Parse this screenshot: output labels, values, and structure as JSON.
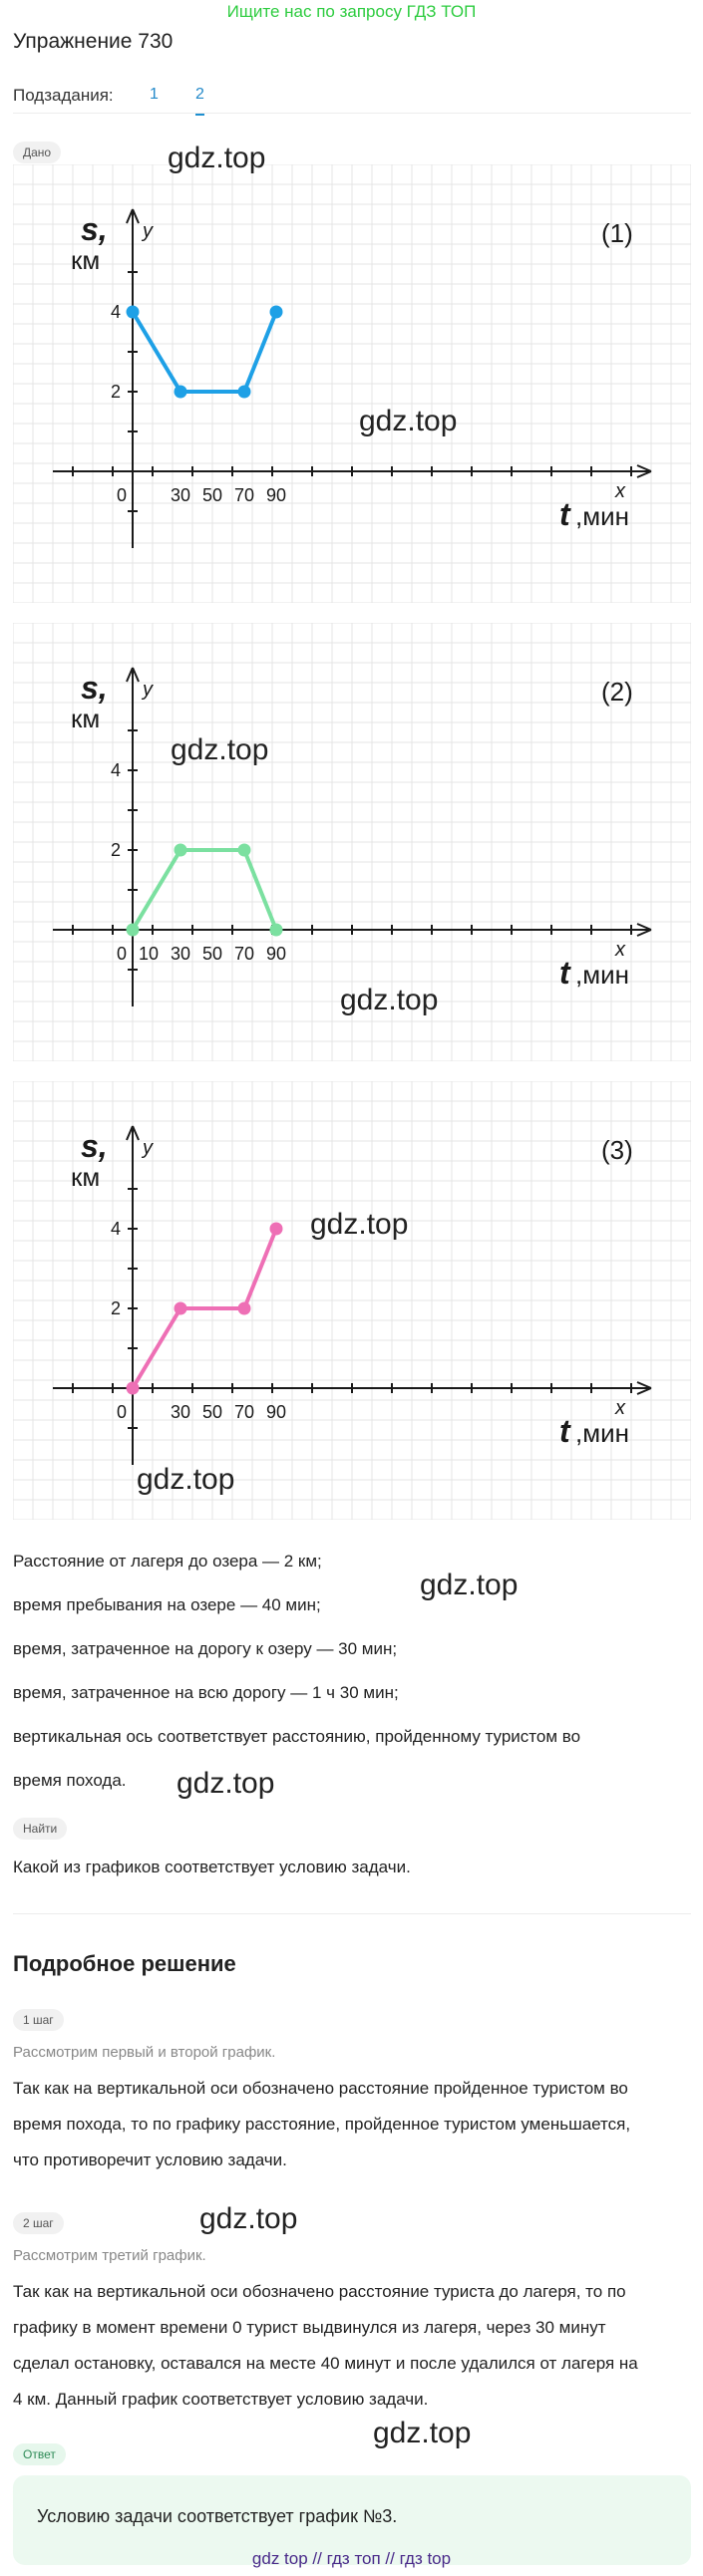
{
  "top_link": "Ищите нас по запросу ГДЗ ТОП",
  "title": "Упражнение 730",
  "subtasks": {
    "label": "Подзадания:",
    "items": [
      "1",
      "2"
    ],
    "active": 1
  },
  "badges": {
    "given": "Дано",
    "find": "Найти",
    "step1": "1 шаг",
    "step2": "2 шаг",
    "answer": "Ответ"
  },
  "watermark": "gdz.top",
  "graph_labels": {
    "s": "s,",
    "km": "км",
    "y": "y",
    "x": "x",
    "t": "t",
    "min": ",мин",
    "x_ticks": [
      "0",
      "10",
      "30",
      "50",
      "70",
      "90"
    ],
    "y_ticks": [
      "4",
      "2"
    ]
  },
  "chart_data": [
    {
      "type": "line",
      "title": "(1)",
      "x": [
        0,
        30,
        70,
        90
      ],
      "y": [
        4,
        2,
        2,
        4
      ],
      "color": "#1ea0e6",
      "xlim": [
        0,
        90
      ],
      "ylim": [
        0,
        4
      ],
      "x_ticks": [
        0,
        30,
        50,
        70,
        90
      ],
      "y_ticks": [
        2,
        4
      ]
    },
    {
      "type": "line",
      "title": "(2)",
      "x": [
        0,
        30,
        70,
        90
      ],
      "y": [
        0,
        2,
        2,
        0
      ],
      "color": "#7be0a0",
      "xlim": [
        0,
        90
      ],
      "ylim": [
        0,
        4
      ],
      "x_ticks": [
        0,
        10,
        30,
        50,
        70,
        90
      ],
      "y_ticks": [
        2,
        4
      ]
    },
    {
      "type": "line",
      "title": "(3)",
      "x": [
        0,
        30,
        70,
        90
      ],
      "y": [
        0,
        2,
        2,
        4
      ],
      "color": "#ee6fb5",
      "xlim": [
        0,
        90
      ],
      "ylim": [
        0,
        4
      ],
      "x_ticks": [
        0,
        30,
        50,
        70,
        90
      ],
      "y_ticks": [
        2,
        4
      ]
    }
  ],
  "conditions": [
    "Расстояние от лагеря до озера — 2 км;",
    "время пребывания на озере — 40 мин;",
    "время, затраченное на дорогу к озеру — 30 мин;",
    "время, затраченное на всю дорогу — 1 ч 30 мин;",
    "вертикальная ось соответствует расстоянию, пройденному туристом во",
    "время похода."
  ],
  "question": "Какой из графиков соответствует условию задачи.",
  "solution_title": "Подробное решение",
  "step1": {
    "subtitle": "Рассмотрим первый и второй график.",
    "lines": [
      "Так как на вертикальной оси обозначено расстояние пройденное туристом во",
      "время похода, то по графику расстояние, пройденное туристом уменьшается,",
      "что противоречит условию задачи."
    ]
  },
  "step2": {
    "subtitle": "Рассмотрим третий график.",
    "lines": [
      "Так как на вертикальной оси обозначено расстояние туриста до лагеря, то по",
      "графику в момент времени 0 турист выдвинулся из лагеря, через 30 минут",
      "сделал остановку, оставался на месте 40 минут и после удалился от лагеря на",
      "4 км. Данный график соответствует условию задачи."
    ]
  },
  "answer": "Условию задачи соответствует график №3.",
  "footer": "gdz top  //  гдз топ  //  гдз top"
}
